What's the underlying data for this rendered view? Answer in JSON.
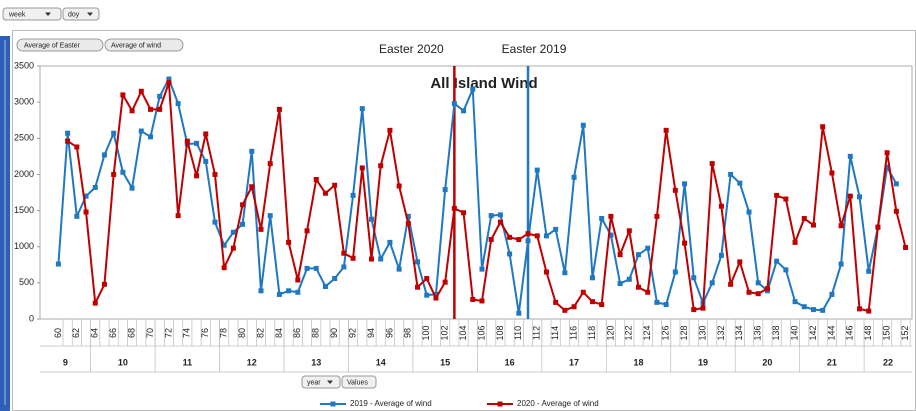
{
  "toolbar": {
    "fields": [
      "week",
      "doy"
    ]
  },
  "filters": [
    "Average of Easter",
    "Average of wind"
  ],
  "bottom_fields": [
    "year",
    "Values"
  ],
  "chart_data": {
    "type": "line",
    "title": "All Island Wind",
    "annotations": [
      {
        "text": "Easter 2020",
        "x": 103,
        "color": "#c00000"
      },
      {
        "text": "Easter 2019",
        "x": 111,
        "color": "#1f78c1"
      }
    ],
    "x": [
      60,
      61,
      62,
      63,
      64,
      65,
      66,
      67,
      68,
      69,
      70,
      71,
      72,
      73,
      74,
      75,
      76,
      77,
      78,
      79,
      80,
      81,
      82,
      83,
      84,
      85,
      86,
      87,
      88,
      89,
      90,
      91,
      92,
      93,
      94,
      95,
      96,
      97,
      98,
      99,
      100,
      101,
      102,
      103,
      104,
      105,
      106,
      107,
      108,
      109,
      110,
      111,
      112,
      113,
      114,
      115,
      116,
      117,
      118,
      119,
      120,
      121,
      122,
      123,
      124,
      125,
      126,
      127,
      128,
      129,
      130,
      131,
      132,
      133,
      134,
      135,
      136,
      137,
      138,
      139,
      140,
      141,
      142,
      143,
      144,
      145,
      146,
      147,
      148,
      149,
      150,
      151,
      152
    ],
    "xticks": [
      60,
      62,
      64,
      66,
      68,
      70,
      72,
      74,
      76,
      78,
      80,
      82,
      84,
      86,
      88,
      90,
      92,
      94,
      96,
      98,
      100,
      102,
      104,
      106,
      108,
      110,
      112,
      114,
      116,
      118,
      120,
      122,
      124,
      126,
      128,
      130,
      132,
      134,
      136,
      138,
      140,
      142,
      144,
      146,
      148,
      150,
      152
    ],
    "xlim": [
      58,
      152.7
    ],
    "weeks": [
      "9",
      "10",
      "11",
      "12",
      "13",
      "14",
      "15",
      "16",
      "17",
      "18",
      "19",
      "20",
      "21",
      "22"
    ],
    "ylim": [
      0,
      3500
    ],
    "yticks": [
      0,
      500,
      1000,
      1500,
      2000,
      2500,
      3000,
      3500
    ],
    "series": [
      {
        "name": "2019 - Average of wind",
        "color": "#1f78c1",
        "values": [
          760,
          2570,
          1420,
          1700,
          1820,
          2270,
          2570,
          2030,
          1810,
          2600,
          2520,
          3080,
          3320,
          2980,
          2420,
          2430,
          2180,
          1340,
          1020,
          1200,
          1310,
          2320,
          390,
          1430,
          340,
          390,
          370,
          700,
          700,
          450,
          560,
          720,
          1710,
          2910,
          1380,
          830,
          1060,
          690,
          1420,
          790,
          330,
          340,
          1790,
          2980,
          2880,
          3180,
          690,
          1430,
          1440,
          900,
          80,
          1080,
          2060,
          1150,
          1240,
          640,
          1960,
          2680,
          570,
          1390,
          1160,
          490,
          550,
          890,
          980,
          230,
          200,
          650,
          1870,
          570,
          220,
          500,
          880,
          2000,
          1880,
          1480,
          500,
          390,
          800,
          680,
          240,
          170,
          130,
          120,
          340,
          760,
          2250,
          1690,
          660,
          1270,
          2100,
          1870,
          null
        ]
      },
      {
        "name": "2020 - Average of wind",
        "color": "#c00000",
        "values": [
          null,
          2460,
          2380,
          1480,
          220,
          480,
          2000,
          3100,
          2880,
          3150,
          2900,
          2900,
          3270,
          1430,
          2460,
          1980,
          2560,
          2000,
          710,
          980,
          1580,
          1830,
          1240,
          2150,
          2900,
          1060,
          540,
          1220,
          1930,
          1740,
          1850,
          910,
          840,
          2090,
          830,
          2120,
          2610,
          1840,
          1320,
          440,
          560,
          290,
          510,
          1530,
          1470,
          270,
          250,
          1100,
          1340,
          1130,
          1100,
          1180,
          1150,
          650,
          230,
          120,
          170,
          370,
          240,
          200,
          1420,
          890,
          1220,
          440,
          370,
          1420,
          2610,
          1780,
          1050,
          130,
          150,
          2150,
          1560,
          480,
          790,
          370,
          350,
          420,
          1710,
          1660,
          1060,
          1390,
          1300,
          2660,
          2020,
          1290,
          1700,
          140,
          110,
          1270,
          2300,
          1490,
          990
        ]
      }
    ]
  }
}
